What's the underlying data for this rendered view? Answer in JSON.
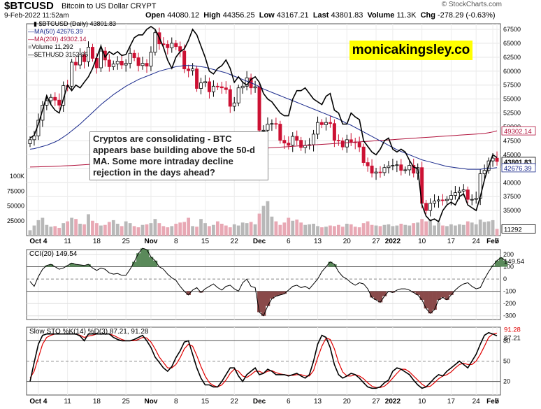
{
  "header": {
    "symbol": "$BTCUSD",
    "name": "Bitcoin to US Dollar  CRYPT",
    "date": "9-Feb-2022 11:52am",
    "open_label": "Open",
    "open": "44080.12",
    "high_label": "High",
    "high": "44356.25",
    "low_label": "Low",
    "low": "43167.21",
    "last_label": "Last",
    "last": "43801.83",
    "volume_label": "Volume",
    "volume": "11.3K",
    "chg_label": "Chg",
    "chg": "-278.29 (-0.63%)",
    "credit": "© StockCharts.com"
  },
  "legend": {
    "price": "$BTCUSD (Daily) 43801.83",
    "ma50": "MA(50) 42676.39",
    "ma200": "MA(200) 49302.14",
    "volume": "Volume 11,292",
    "eth": "$ETHUSD 3152.95"
  },
  "annotation": "Cryptos are consolidating - BTC appears base building above the 50-d MA. Some more intraday decline rejection in the days ahead?",
  "brand": "monicakingsley.co",
  "colors": {
    "up": "#000000",
    "down": "#cc1133",
    "ma50": "#1a2a8c",
    "ma200": "#b0103a",
    "eth": "#000000",
    "vol_up": "#b8b8b8",
    "vol_down": "#e8a8b4",
    "cci_pos": "#5a8a5a",
    "cci_neg": "#8a4a4a",
    "sto_k": "#000000",
    "sto_d": "#e00000"
  },
  "chart_data": [
    {
      "type": "candlestick",
      "title": "$BTCUSD (Daily)",
      "x_ticks": [
        "Oct 4",
        "11",
        "18",
        "25",
        "Nov",
        "8",
        "15",
        "22",
        "Dec",
        "6",
        "13",
        "20",
        "27",
        "2022",
        "10",
        "17",
        "24",
        "Feb",
        "7"
      ],
      "y_ticks": [
        35000,
        37500,
        40000,
        42500,
        45000,
        47500,
        50000,
        52500,
        55000,
        57500,
        60000,
        62500,
        65000,
        67500
      ],
      "ylim": [
        30500,
        68500
      ],
      "volume_ticks_label": [
        "25000",
        "50000",
        "75000",
        "100K"
      ],
      "price_labels": {
        "ma200": "49302.14",
        "last": "43801.83",
        "ma50": "42676.39",
        "volume": "11292"
      },
      "closes": [
        47700,
        48400,
        51200,
        53900,
        54700,
        55300,
        54800,
        53900,
        57400,
        57300,
        61600,
        61100,
        62900,
        61700,
        64300,
        62300,
        60600,
        63600,
        62000,
        60800,
        61300,
        61800,
        61100,
        61400,
        63200,
        62400,
        61000,
        61400,
        60900,
        63400,
        66900,
        64900,
        64800,
        64200,
        65000,
        64400,
        63600,
        60400,
        60100,
        60400,
        56900,
        57900,
        58100,
        56300,
        57300,
        57200,
        57000,
        56700,
        53700,
        54300,
        57000,
        57300,
        58800,
        57000,
        57200,
        49400,
        49400,
        50500,
        50600,
        50500,
        47600,
        47100,
        46700,
        48300,
        47600,
        46300,
        46700,
        46800,
        48700,
        50800,
        50400,
        50800,
        50600,
        47600,
        47500,
        46400,
        47700,
        47300,
        47200,
        46400,
        43600,
        43000,
        41700,
        41900,
        41800,
        42700,
        43000,
        43100,
        43200,
        42200,
        42300,
        43100,
        41700,
        42700,
        36300,
        35000,
        36300,
        36700,
        36900,
        36800,
        37000,
        37700,
        38200,
        38500,
        38700,
        37000,
        37000,
        37200,
        41600,
        42200,
        43900,
        44400,
        43800
      ],
      "series": [
        {
          "name": "MA(50)",
          "values": [
            46000,
            46100,
            46300,
            46500,
            46700,
            47000,
            47300,
            47700,
            48200,
            48700,
            49300,
            49900,
            50500,
            51200,
            51900,
            52600,
            53300,
            54000,
            54600,
            55200,
            55800,
            56300,
            56800,
            57300,
            57700,
            58100,
            58500,
            58800,
            59100,
            59400,
            59700,
            60000,
            60200,
            60400,
            60600,
            60800,
            60900,
            61000,
            61000,
            61000,
            60900,
            60800,
            60700,
            60500,
            60300,
            60100,
            59900,
            59700,
            59400,
            59100,
            58800,
            58500,
            58200,
            57900,
            57600,
            57200,
            56800,
            56500,
            56200,
            55900,
            55600,
            55300,
            55000,
            54700,
            54400,
            54100,
            53800,
            53500,
            53200,
            52900,
            52600,
            52300,
            52000,
            51700,
            51400,
            51000,
            50600,
            50300,
            49900,
            49500,
            49100,
            48700,
            48300,
            47900,
            47500,
            47100,
            46700,
            46300,
            45900,
            45600,
            45300,
            45000,
            44700,
            44400,
            44100,
            43900,
            43700,
            43500,
            43300,
            43100,
            42900,
            42800,
            42700,
            42600,
            42500,
            42400,
            42400,
            42400,
            42400,
            42500,
            42600,
            42600,
            42700
          ]
        },
        {
          "name": "MA(200)",
          "values": [
            42800,
            42820,
            42840,
            42860,
            42880,
            42900,
            42930,
            42960,
            43000,
            43040,
            43080,
            43120,
            43170,
            43220,
            43270,
            43330,
            43390,
            43450,
            43510,
            43580,
            43650,
            43720,
            43800,
            43880,
            43960,
            44040,
            44120,
            44200,
            44280,
            44360,
            44440,
            44520,
            44600,
            44680,
            44760,
            44840,
            44910,
            44980,
            45050,
            45120,
            45190,
            45260,
            45330,
            45400,
            45460,
            45520,
            45580,
            45640,
            45700,
            45760,
            45820,
            45880,
            45940,
            46000,
            46060,
            46120,
            46170,
            46220,
            46270,
            46320,
            46370,
            46420,
            46470,
            46520,
            46570,
            46620,
            46670,
            46720,
            46770,
            46820,
            46870,
            46920,
            46970,
            47020,
            47070,
            47120,
            47170,
            47220,
            47270,
            47320,
            47370,
            47420,
            47470,
            47520,
            47570,
            47620,
            47670,
            47720,
            47770,
            47820,
            47870,
            47920,
            47970,
            48020,
            48070,
            48120,
            48170,
            48220,
            48270,
            48320,
            48370,
            48420,
            48470,
            48520,
            48570,
            48620,
            48670,
            48720,
            48770,
            48850,
            48950,
            49100,
            49302
          ]
        },
        {
          "name": "$ETHUSD",
          "values": [
            48000,
            48500,
            50500,
            53000,
            55600,
            54000,
            53000,
            52500,
            55000,
            57500,
            56500,
            57500,
            57000,
            58000,
            59000,
            60500,
            62500,
            64500,
            62500,
            63500,
            63000,
            63500,
            62800,
            63000,
            64500,
            66000,
            66500,
            66500,
            67500,
            68000,
            67500,
            66000,
            64300,
            62000,
            60500,
            62500,
            63500,
            64000,
            65500,
            67500,
            66500,
            64500,
            62500,
            60000,
            59500,
            60500,
            61000,
            62000,
            60500,
            58000,
            59000,
            58000,
            57500,
            58500,
            59000,
            58000,
            56000,
            55000,
            54500,
            53500,
            52500,
            52000,
            52000,
            55000,
            56500,
            56500,
            57000,
            56000,
            55000,
            54500,
            54000,
            55500,
            56000,
            53000,
            52500,
            50500,
            50500,
            52500,
            51800,
            51300,
            47500,
            46500,
            45500,
            45000,
            46000,
            47500,
            48000,
            46000,
            45500,
            46000,
            45500,
            44000,
            42800,
            42500,
            36000,
            34000,
            33200,
            33500,
            33000,
            35000,
            36000,
            36500,
            36000,
            37500,
            38000,
            36000,
            35500,
            35000,
            37500,
            40500,
            43000,
            45000,
            44500
          ]
        },
        {
          "name": "Volume",
          "values": [
            9000,
            17000,
            26000,
            30000,
            18000,
            15000,
            16000,
            13000,
            21000,
            24000,
            30000,
            28000,
            20000,
            19000,
            36000,
            25000,
            21000,
            17000,
            18000,
            23000,
            26000,
            20000,
            16000,
            24000,
            21000,
            16000,
            14000,
            18000,
            19000,
            21000,
            28000,
            21000,
            16000,
            14000,
            16000,
            20000,
            22000,
            23000,
            30000,
            16000,
            15000,
            28000,
            21000,
            16000,
            18000,
            24000,
            20000,
            17000,
            14000,
            19000,
            17000,
            22000,
            21000,
            23000,
            19000,
            37000,
            50000,
            58000,
            32000,
            24000,
            18000,
            22000,
            30000,
            25000,
            27000,
            22000,
            18000,
            19000,
            20000,
            16000,
            14000,
            15000,
            17000,
            16000,
            18000,
            15000,
            20000,
            19000,
            15000,
            14000,
            21000,
            24000,
            18000,
            17000,
            16000,
            18000,
            19000,
            16000,
            17000,
            20000,
            18000,
            17000,
            21000,
            22000,
            28000,
            24000,
            27000,
            17000,
            22000,
            17000,
            16000,
            19000,
            17000,
            19000,
            18000,
            24000,
            22000,
            19000,
            27000,
            23000,
            24000,
            26000,
            11292
          ]
        }
      ]
    },
    {
      "type": "line",
      "title": "CCI(20) 149.54",
      "y_ticks": [
        -300,
        -200,
        -100,
        0,
        100,
        200
      ],
      "ylim": [
        -330,
        240
      ],
      "value_label": "149.54",
      "series": [
        {
          "name": "CCI(20)",
          "values": [
            -20,
            -60,
            20,
            80,
            110,
            120,
            100,
            80,
            90,
            110,
            130,
            120,
            115,
            110,
            120,
            90,
            70,
            90,
            80,
            50,
            40,
            45,
            30,
            30,
            80,
            140,
            210,
            250,
            240,
            180,
            150,
            100,
            80,
            40,
            10,
            -10,
            -60,
            -100,
            -130,
            -90,
            -70,
            -110,
            -80,
            -60,
            -40,
            -70,
            -90,
            -60,
            -50,
            -80,
            -100,
            -30,
            0,
            -60,
            -70,
            -270,
            -300,
            -220,
            -160,
            -140,
            -130,
            -120,
            -90,
            -60,
            -50,
            -70,
            -60,
            -80,
            -40,
            0,
            60,
            100,
            140,
            120,
            60,
            20,
            0,
            -30,
            -50,
            -30,
            -40,
            -80,
            -150,
            -170,
            -190,
            -140,
            -100,
            -110,
            -90,
            -80,
            -80,
            -90,
            -110,
            -130,
            -170,
            -240,
            -280,
            -250,
            -170,
            -150,
            -170,
            -130,
            -90,
            -60,
            -40,
            -30,
            -60,
            -80,
            -70,
            0,
            60,
            110,
            150,
            175,
            149.54
          ]
        }
      ]
    },
    {
      "type": "line",
      "title": "Slow STO %K(14) %D(3) 87.21, 91.28",
      "y_ticks": [
        20,
        50,
        80
      ],
      "ylim": [
        0,
        100
      ],
      "value_labels": [
        "91.28",
        "87.21"
      ],
      "series": [
        {
          "name": "%K(14)",
          "values": [
            20,
            48,
            75,
            88,
            90,
            90,
            90,
            90,
            90,
            90,
            90,
            90,
            87,
            80,
            90,
            90,
            90,
            90,
            90,
            90,
            85,
            82,
            80,
            80,
            80,
            82,
            85,
            88,
            80,
            70,
            56,
            48,
            40,
            35,
            42,
            55,
            65,
            78,
            80,
            60,
            40,
            25,
            15,
            15,
            12,
            12,
            20,
            30,
            40,
            40,
            28,
            20,
            30,
            35,
            40,
            30,
            32,
            38,
            35,
            30,
            30,
            30,
            28,
            30,
            32,
            28,
            25,
            30,
            50,
            75,
            88,
            85,
            70,
            45,
            30,
            25,
            28,
            32,
            30,
            25,
            18,
            12,
            10,
            10,
            12,
            18,
            22,
            35,
            40,
            38,
            34,
            30,
            22,
            15,
            10,
            12,
            18,
            25,
            30,
            28,
            35,
            40,
            45,
            50,
            45,
            40,
            50,
            60,
            75,
            88,
            92,
            90,
            87.21
          ]
        },
        {
          "name": "%D(3)",
          "values": [
            25,
            35,
            55,
            75,
            85,
            88,
            90,
            90,
            90,
            90,
            90,
            90,
            88,
            85,
            87,
            88,
            90,
            90,
            90,
            90,
            88,
            85,
            82,
            80,
            80,
            80,
            82,
            85,
            84,
            78,
            68,
            56,
            48,
            40,
            40,
            45,
            55,
            68,
            75,
            72,
            58,
            42,
            28,
            18,
            14,
            12,
            15,
            22,
            32,
            38,
            35,
            28,
            26,
            30,
            35,
            35,
            32,
            35,
            36,
            33,
            31,
            30,
            29,
            29,
            30,
            30,
            28,
            28,
            36,
            55,
            72,
            84,
            82,
            68,
            48,
            34,
            28,
            28,
            30,
            28,
            24,
            18,
            13,
            11,
            11,
            13,
            18,
            25,
            32,
            38,
            38,
            34,
            28,
            22,
            16,
            12,
            13,
            18,
            24,
            28,
            30,
            34,
            40,
            45,
            47,
            45,
            45,
            50,
            60,
            72,
            85,
            90,
            91.28
          ]
        }
      ]
    }
  ]
}
